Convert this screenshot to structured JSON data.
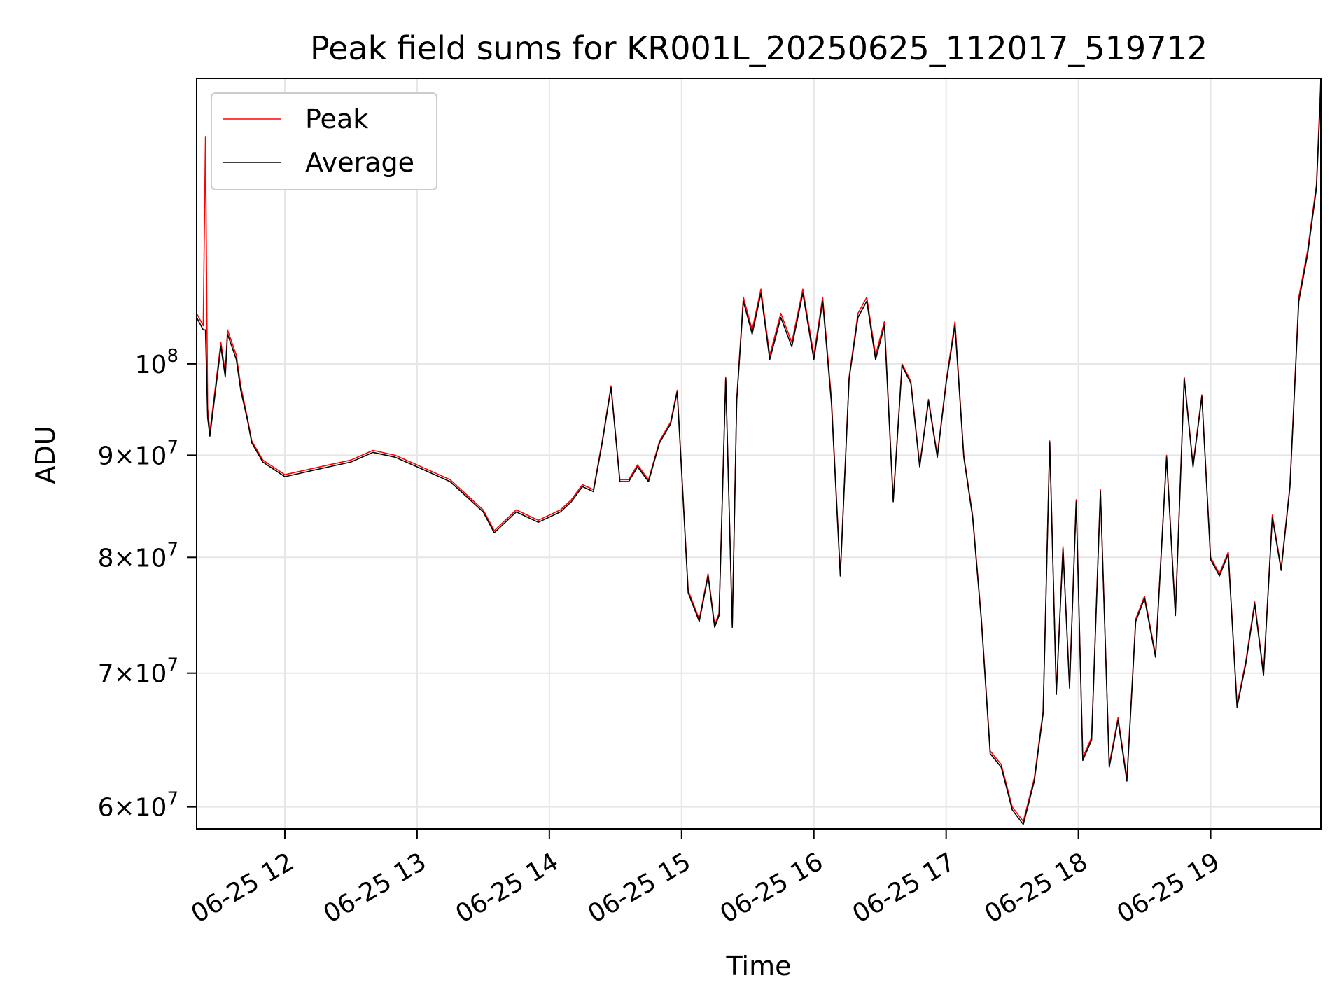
{
  "chart_data": {
    "type": "line",
    "title": "Peak field sums for KR001L_20250625_112017_519712",
    "xlabel": "Time",
    "ylabel": "ADU",
    "y_scale": "log",
    "x_range": [
      "2025-06-25 11:20",
      "2025-06-25 19:50"
    ],
    "ylim": [
      58500000,
      139000000
    ],
    "x_ticks": [
      {
        "time": "2025-06-25 12:00",
        "label": "06-25 12"
      },
      {
        "time": "2025-06-25 13:00",
        "label": "06-25 13"
      },
      {
        "time": "2025-06-25 14:00",
        "label": "06-25 14"
      },
      {
        "time": "2025-06-25 15:00",
        "label": "06-25 15"
      },
      {
        "time": "2025-06-25 16:00",
        "label": "06-25 16"
      },
      {
        "time": "2025-06-25 17:00",
        "label": "06-25 17"
      },
      {
        "time": "2025-06-25 18:00",
        "label": "06-25 18"
      },
      {
        "time": "2025-06-25 19:00",
        "label": "06-25 19"
      }
    ],
    "y_ticks": [
      {
        "value": 60000000,
        "mant": "6",
        "exp": "7"
      },
      {
        "value": 70000000,
        "mant": "7",
        "exp": "7"
      },
      {
        "value": 80000000,
        "mant": "8",
        "exp": "7"
      },
      {
        "value": 90000000,
        "mant": "9",
        "exp": "7"
      },
      {
        "value": 100000000,
        "mant": "",
        "exp": "8"
      }
    ],
    "grid": true,
    "legend_position": "top-left",
    "series": [
      {
        "name": "Peak",
        "color": "#ff0000",
        "x": [
          "2025-06-25 11:20",
          "2025-06-25 11:23",
          "2025-06-25 11:24",
          "2025-06-25 11:25",
          "2025-06-25 11:26",
          "2025-06-25 11:31",
          "2025-06-25 11:33",
          "2025-06-25 11:34",
          "2025-06-25 11:38",
          "2025-06-25 11:40",
          "2025-06-25 11:43",
          "2025-06-25 11:45",
          "2025-06-25 11:50",
          "2025-06-25 12:00",
          "2025-06-25 12:10",
          "2025-06-25 12:20",
          "2025-06-25 12:30",
          "2025-06-25 12:40",
          "2025-06-25 12:50",
          "2025-06-25 13:00",
          "2025-06-25 13:15",
          "2025-06-25 13:30",
          "2025-06-25 13:35",
          "2025-06-25 13:45",
          "2025-06-25 13:55",
          "2025-06-25 14:05",
          "2025-06-25 14:10",
          "2025-06-25 14:15",
          "2025-06-25 14:20",
          "2025-06-25 14:24",
          "2025-06-25 14:28",
          "2025-06-25 14:32",
          "2025-06-25 14:36",
          "2025-06-25 14:40",
          "2025-06-25 14:45",
          "2025-06-25 14:50",
          "2025-06-25 14:55",
          "2025-06-25 14:58",
          "2025-06-25 15:00",
          "2025-06-25 15:03",
          "2025-06-25 15:08",
          "2025-06-25 15:12",
          "2025-06-25 15:15",
          "2025-06-25 15:17",
          "2025-06-25 15:20",
          "2025-06-25 15:23",
          "2025-06-25 15:25",
          "2025-06-25 15:28",
          "2025-06-25 15:32",
          "2025-06-25 15:36",
          "2025-06-25 15:40",
          "2025-06-25 15:45",
          "2025-06-25 15:50",
          "2025-06-25 15:55",
          "2025-06-25 16:00",
          "2025-06-25 16:04",
          "2025-06-25 16:08",
          "2025-06-25 16:12",
          "2025-06-25 16:16",
          "2025-06-25 16:20",
          "2025-06-25 16:24",
          "2025-06-25 16:28",
          "2025-06-25 16:32",
          "2025-06-25 16:36",
          "2025-06-25 16:40",
          "2025-06-25 16:44",
          "2025-06-25 16:48",
          "2025-06-25 16:52",
          "2025-06-25 16:56",
          "2025-06-25 17:00",
          "2025-06-25 17:04",
          "2025-06-25 17:08",
          "2025-06-25 17:12",
          "2025-06-25 17:16",
          "2025-06-25 17:20",
          "2025-06-25 17:25",
          "2025-06-25 17:30",
          "2025-06-25 17:35",
          "2025-06-25 17:40",
          "2025-06-25 17:44",
          "2025-06-25 17:47",
          "2025-06-25 17:50",
          "2025-06-25 17:53",
          "2025-06-25 17:56",
          "2025-06-25 17:59",
          "2025-06-25 18:02",
          "2025-06-25 18:06",
          "2025-06-25 18:10",
          "2025-06-25 18:14",
          "2025-06-25 18:18",
          "2025-06-25 18:22",
          "2025-06-25 18:26",
          "2025-06-25 18:30",
          "2025-06-25 18:35",
          "2025-06-25 18:40",
          "2025-06-25 18:44",
          "2025-06-25 18:48",
          "2025-06-25 18:52",
          "2025-06-25 18:56",
          "2025-06-25 19:00",
          "2025-06-25 19:04",
          "2025-06-25 19:08",
          "2025-06-25 19:12",
          "2025-06-25 19:16",
          "2025-06-25 19:20",
          "2025-06-25 19:24",
          "2025-06-25 19:28",
          "2025-06-25 19:32",
          "2025-06-25 19:36",
          "2025-06-25 19:40",
          "2025-06-25 19:44",
          "2025-06-25 19:48",
          "2025-06-25 19:50"
        ],
        "y": [
          106000000,
          104500000,
          130000000,
          95000000,
          92500000,
          102500000,
          99000000,
          104000000,
          101000000,
          97500000,
          94000000,
          91500000,
          89500000,
          88000000,
          88500000,
          89000000,
          89500000,
          90500000,
          90000000,
          89000000,
          87500000,
          84500000,
          82500000,
          84500000,
          83500000,
          84500000,
          85500000,
          87000000,
          86500000,
          91500000,
          97500000,
          87500000,
          87500000,
          89000000,
          87500000,
          91500000,
          93500000,
          97000000,
          88500000,
          77000000,
          74500000,
          78500000,
          74000000,
          75000000,
          98500000,
          74000000,
          96000000,
          108000000,
          104000000,
          109000000,
          101000000,
          106000000,
          102500000,
          109000000,
          101000000,
          108000000,
          96000000,
          78500000,
          98500000,
          106000000,
          108000000,
          101000000,
          105000000,
          85500000,
          100000000,
          98000000,
          89000000,
          96000000,
          90000000,
          98000000,
          105000000,
          90000000,
          84000000,
          74500000,
          64000000,
          63000000,
          60000000,
          59000000,
          62000000,
          67000000,
          91500000,
          68500000,
          81000000,
          69000000,
          85500000,
          63500000,
          65000000,
          86500000,
          63000000,
          66500000,
          62000000,
          74500000,
          76500000,
          71500000,
          90000000,
          75000000,
          98500000,
          89000000,
          96500000,
          80000000,
          78500000,
          80500000,
          67500000,
          71000000,
          76000000,
          70000000,
          84000000,
          79000000,
          87000000,
          108000000,
          114000000,
          123000000,
          139000000
        ],
        "values_in_plot": "Peak is approximately equal to Average with small positive excursions"
      },
      {
        "name": "Average",
        "color": "#000000",
        "x": [
          "2025-06-25 11:20",
          "2025-06-25 11:23",
          "2025-06-25 11:24",
          "2025-06-25 11:25",
          "2025-06-25 11:26",
          "2025-06-25 11:31",
          "2025-06-25 11:33",
          "2025-06-25 11:34",
          "2025-06-25 11:38",
          "2025-06-25 11:40",
          "2025-06-25 11:43",
          "2025-06-25 11:45",
          "2025-06-25 11:50",
          "2025-06-25 12:00",
          "2025-06-25 12:10",
          "2025-06-25 12:20",
          "2025-06-25 12:30",
          "2025-06-25 12:40",
          "2025-06-25 12:50",
          "2025-06-25 13:00",
          "2025-06-25 13:15",
          "2025-06-25 13:30",
          "2025-06-25 13:35",
          "2025-06-25 13:45",
          "2025-06-25 13:55",
          "2025-06-25 14:05",
          "2025-06-25 14:10",
          "2025-06-25 14:15",
          "2025-06-25 14:20",
          "2025-06-25 14:24",
          "2025-06-25 14:28",
          "2025-06-25 14:32",
          "2025-06-25 14:36",
          "2025-06-25 14:40",
          "2025-06-25 14:45",
          "2025-06-25 14:50",
          "2025-06-25 14:55",
          "2025-06-25 14:58",
          "2025-06-25 15:00",
          "2025-06-25 15:03",
          "2025-06-25 15:08",
          "2025-06-25 15:12",
          "2025-06-25 15:15",
          "2025-06-25 15:17",
          "2025-06-25 15:20",
          "2025-06-25 15:23",
          "2025-06-25 15:25",
          "2025-06-25 15:28",
          "2025-06-25 15:32",
          "2025-06-25 15:36",
          "2025-06-25 15:40",
          "2025-06-25 15:45",
          "2025-06-25 15:50",
          "2025-06-25 15:55",
          "2025-06-25 16:00",
          "2025-06-25 16:04",
          "2025-06-25 16:08",
          "2025-06-25 16:12",
          "2025-06-25 16:16",
          "2025-06-25 16:20",
          "2025-06-25 16:24",
          "2025-06-25 16:28",
          "2025-06-25 16:32",
          "2025-06-25 16:36",
          "2025-06-25 16:40",
          "2025-06-25 16:44",
          "2025-06-25 16:48",
          "2025-06-25 16:52",
          "2025-06-25 16:56",
          "2025-06-25 17:00",
          "2025-06-25 17:04",
          "2025-06-25 17:08",
          "2025-06-25 17:12",
          "2025-06-25 17:16",
          "2025-06-25 17:20",
          "2025-06-25 17:25",
          "2025-06-25 17:30",
          "2025-06-25 17:35",
          "2025-06-25 17:40",
          "2025-06-25 17:44",
          "2025-06-25 17:47",
          "2025-06-25 17:50",
          "2025-06-25 17:53",
          "2025-06-25 17:56",
          "2025-06-25 17:59",
          "2025-06-25 18:02",
          "2025-06-25 18:06",
          "2025-06-25 18:10",
          "2025-06-25 18:14",
          "2025-06-25 18:18",
          "2025-06-25 18:22",
          "2025-06-25 18:26",
          "2025-06-25 18:30",
          "2025-06-25 18:35",
          "2025-06-25 18:40",
          "2025-06-25 18:44",
          "2025-06-25 18:48",
          "2025-06-25 18:52",
          "2025-06-25 18:56",
          "2025-06-25 19:00",
          "2025-06-25 19:04",
          "2025-06-25 19:08",
          "2025-06-25 19:12",
          "2025-06-25 19:16",
          "2025-06-25 19:20",
          "2025-06-25 19:24",
          "2025-06-25 19:28",
          "2025-06-25 19:32",
          "2025-06-25 19:36",
          "2025-06-25 19:40",
          "2025-06-25 19:44",
          "2025-06-25 19:48",
          "2025-06-25 19:50"
        ],
        "y": [
          105500000,
          104000000,
          104000000,
          94000000,
          92000000,
          102000000,
          98500000,
          103500000,
          100500000,
          97000000,
          93800000,
          91300000,
          89300000,
          87800000,
          88300000,
          88800000,
          89300000,
          90300000,
          89800000,
          88800000,
          87300000,
          84300000,
          82300000,
          84300000,
          83300000,
          84300000,
          85300000,
          86800000,
          86300000,
          91300000,
          97300000,
          87300000,
          87300000,
          88800000,
          87300000,
          91300000,
          93300000,
          96800000,
          88300000,
          76800000,
          74300000,
          78300000,
          73800000,
          74800000,
          98300000,
          73800000,
          95800000,
          107500000,
          103500000,
          108500000,
          100500000,
          105500000,
          102000000,
          108500000,
          100500000,
          107500000,
          95500000,
          78300000,
          98300000,
          105500000,
          107500000,
          100500000,
          104500000,
          85300000,
          99800000,
          97800000,
          88800000,
          95800000,
          89800000,
          97800000,
          104500000,
          89800000,
          83800000,
          74300000,
          63800000,
          62800000,
          59800000,
          58800000,
          61800000,
          66800000,
          91300000,
          68300000,
          80800000,
          68800000,
          85300000,
          63300000,
          64800000,
          86300000,
          62800000,
          66300000,
          61800000,
          74300000,
          76300000,
          71300000,
          89800000,
          74800000,
          98300000,
          88800000,
          96300000,
          79800000,
          78300000,
          80300000,
          67300000,
          70800000,
          75800000,
          69800000,
          83800000,
          78800000,
          86800000,
          107500000,
          113500000,
          122500000,
          137500000
        ]
      }
    ]
  }
}
